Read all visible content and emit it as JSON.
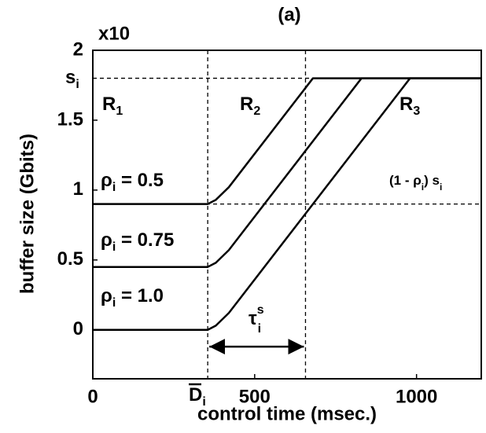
{
  "chart_data": {
    "type": "line",
    "title": "(a)",
    "y_multiplier": "x10",
    "xlabel": "control time (msec.)",
    "ylabel": "buffer size (Gbits)",
    "xlim": [
      0,
      1200
    ],
    "ylim": [
      -0.35,
      2
    ],
    "xticks": [
      0,
      500,
      1000
    ],
    "yticks": [
      0,
      0.5,
      1,
      1.5,
      2
    ],
    "color": "#000000",
    "series": [
      {
        "name": "ρi = 0.5",
        "x": [
          0,
          355,
          380,
          420,
          680,
          1200
        ],
        "values": [
          0.9,
          0.9,
          0.93,
          1.02,
          1.8,
          1.8
        ]
      },
      {
        "name": "ρi = 0.75",
        "x": [
          0,
          355,
          380,
          420,
          830,
          1200
        ],
        "values": [
          0.45,
          0.45,
          0.48,
          0.57,
          1.8,
          1.8
        ]
      },
      {
        "name": "ρi = 1.0",
        "x": [
          0,
          355,
          380,
          420,
          980,
          1200
        ],
        "values": [
          0,
          0,
          0.03,
          0.12,
          1.8,
          1.8
        ]
      }
    ],
    "hlines": [
      1.8,
      0.9
    ],
    "vlines": [
      355,
      657
    ],
    "arrow": {
      "x": [
        355,
        657
      ],
      "y": -0.12
    },
    "annotations": [
      {
        "text": "R",
        "sub": "1"
      },
      {
        "text": "R",
        "sub": "2"
      },
      {
        "text": "R",
        "sub": "3"
      },
      {
        "text": "ρ",
        "sub": "i",
        "after": " = 0.5"
      },
      {
        "text": "ρ",
        "sub": "i",
        "after": " = 0.75"
      },
      {
        "text": "ρ",
        "sub": "i",
        "after": " = 1.0"
      },
      {
        "text": "(1 - ρ",
        "sub": "i",
        "after": ") s",
        "sub2": "i"
      },
      {
        "text": "s",
        "sub": "i"
      },
      {
        "text": "τ",
        "sub": "i",
        "sup": "s"
      },
      {
        "text": "D",
        "sub": "i"
      }
    ]
  }
}
